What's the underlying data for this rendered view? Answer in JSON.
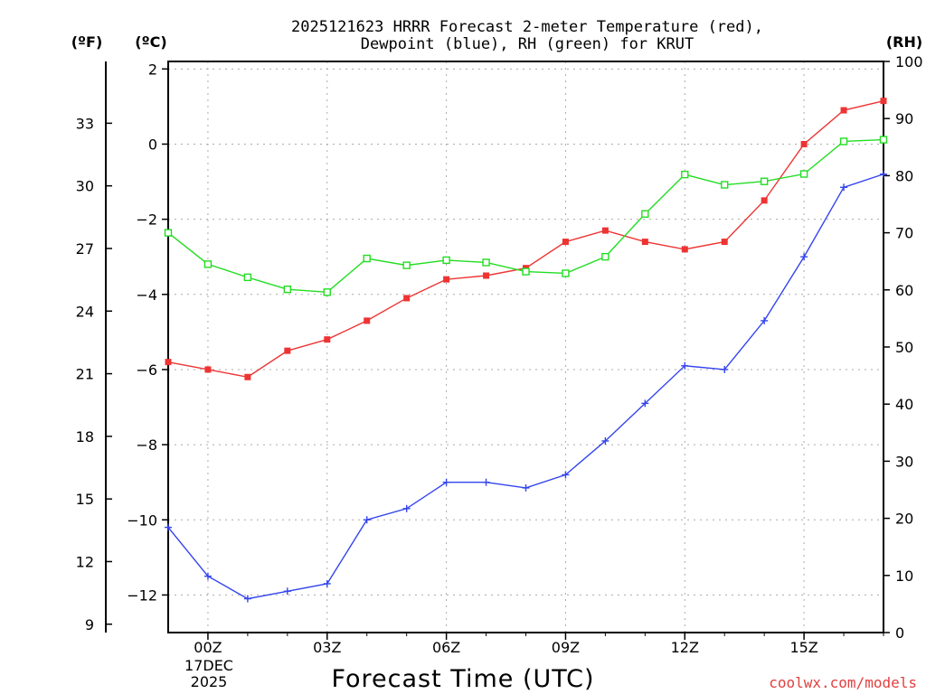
{
  "chart_data": {
    "type": "line",
    "title_line1": "2025121623 HRRR Forecast 2-meter Temperature (red),",
    "title_line2": "Dewpoint (blue), RH (green) for KRUT",
    "xlabel": "Forecast Time (UTC)",
    "axis_labels": {
      "fahrenheit": "(ºF)",
      "celsius": "(ºC)",
      "rh": "(RH)"
    },
    "x_hours": [
      -1,
      0,
      1,
      2,
      3,
      4,
      5,
      6,
      7,
      8,
      9,
      10,
      11,
      12,
      13,
      14,
      15,
      16,
      17
    ],
    "x_ticks": [
      {
        "hour": 0,
        "label": "00Z"
      },
      {
        "hour": 3,
        "label": "03Z"
      },
      {
        "hour": 6,
        "label": "06Z"
      },
      {
        "hour": 9,
        "label": "09Z"
      },
      {
        "hour": 12,
        "label": "12Z"
      },
      {
        "hour": 15,
        "label": "15Z"
      }
    ],
    "date_label_line1": "17DEC",
    "date_label_line2": "2025",
    "celsius_range": [
      -13.0,
      2.2
    ],
    "celsius_ticks": [
      2,
      0,
      -2,
      -4,
      -6,
      -8,
      -10,
      -12
    ],
    "fahrenheit_ticks": [
      33,
      30,
      27,
      24,
      21,
      18,
      15,
      12,
      9
    ],
    "rh_range": [
      0,
      100
    ],
    "rh_ticks": [
      100,
      90,
      80,
      70,
      60,
      50,
      40,
      30,
      20,
      10,
      0
    ],
    "series": [
      {
        "name": "Temperature (°C)",
        "color": "#ee3333",
        "axis": "celsius",
        "marker": "filled-square",
        "values": [
          -5.8,
          -6.0,
          -6.2,
          -5.5,
          -5.2,
          -4.7,
          -4.1,
          -3.6,
          -3.5,
          -3.3,
          -2.6,
          -2.3,
          -2.6,
          -2.8,
          -2.6,
          -1.5,
          0.0,
          0.9,
          1.15
        ]
      },
      {
        "name": "Dewpoint (°C)",
        "color": "#3344ee",
        "axis": "celsius",
        "marker": "plus",
        "values": [
          -10.2,
          -11.5,
          -12.1,
          -11.9,
          -11.7,
          -10.0,
          -9.7,
          -9.0,
          -9.0,
          -9.15,
          -8.8,
          -7.9,
          -6.9,
          -5.9,
          -6.0,
          -4.7,
          -3.0,
          -1.15,
          -0.8
        ]
      },
      {
        "name": "RH (%)",
        "color": "#22dd22",
        "axis": "rh",
        "marker": "open-square",
        "values": [
          70,
          64.5,
          62.2,
          60.1,
          59.6,
          65.5,
          64.3,
          65.2,
          64.8,
          63.2,
          62.9,
          65.8,
          73.3,
          80.2,
          78.4,
          79.0,
          80.3,
          86.0,
          86.3
        ]
      }
    ],
    "credit": "coolwx.com/models"
  }
}
